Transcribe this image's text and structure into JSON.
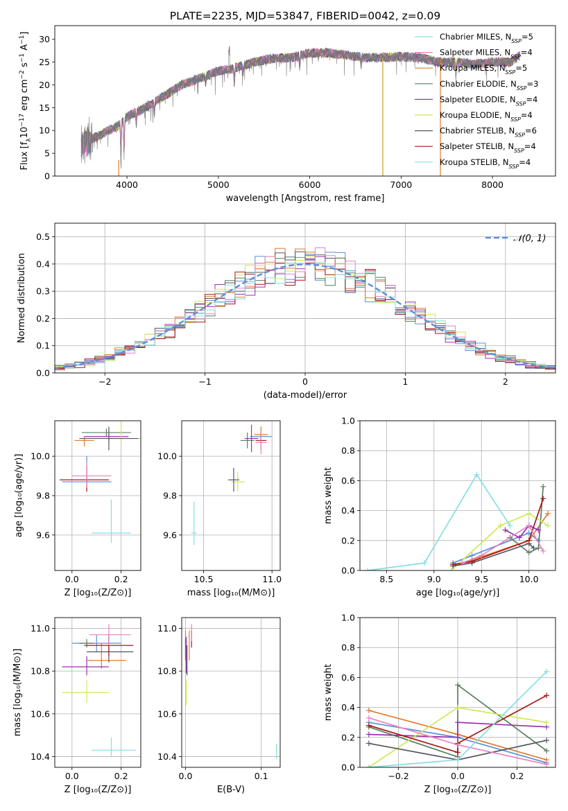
{
  "title": "PLATE=2235, MJD=53847, FIBERID=0042, z=0.09",
  "colors": [
    "#5b8fd8",
    "#e27a2c",
    "#577f5c",
    "#9a2fb1",
    "#cfe857",
    "#55555d",
    "#a81717",
    "#e682c1",
    "#86dde2"
  ],
  "legend_labels": [
    "Chabrier MILES, N_SSP=5",
    "Salpeter MILES, N_SSP=4",
    "Kroupa MILES, N_SSP=5",
    "Chabrier ELODIE, N_SSP=3",
    "Salpeter ELODIE, N_SSP=4",
    "Kroupa ELODIE, N_SSP=4",
    "Chabrier STELIB, N_SSP=6",
    "Salpeter STELIB, N_SSP=4",
    "Kroupa STELIB, N_SSP=4"
  ],
  "legend_colors": [
    "#86dde2",
    "#e682c1",
    "#e27a2c",
    "#577f5c",
    "#9a2fb1",
    "#cfe857",
    "#55555d",
    "#a81717",
    "#86dde2"
  ],
  "chart_data": [
    {
      "type": "line",
      "name": "spectrum",
      "title": "PLATE=2235, MJD=53847, FIBERID=0042, z=0.09",
      "xlabel": "wavelength [Angstrom, rest frame]",
      "ylabel": "Flux [f_λ 10^-17 erg cm^-2 s^-1 A^-1]",
      "xlim": [
        3210,
        8690
      ],
      "ylim": [
        0,
        33
      ],
      "xticks": [
        4000,
        5000,
        6000,
        7000,
        8000
      ],
      "yticks": [
        0,
        5,
        10,
        15,
        20,
        25,
        30
      ],
      "grid": false,
      "legend": "top-right",
      "continuum": {
        "x": [
          3500,
          3700,
          3900,
          4000,
          4200,
          4400,
          4600,
          4800,
          5000,
          5200,
          5400,
          5600,
          5800,
          6000,
          6200,
          6400,
          6600,
          6800,
          7000,
          7200,
          7400,
          7600,
          7800,
          8000,
          8200,
          8300
        ],
        "y": [
          7,
          9,
          11,
          13,
          15,
          17.5,
          20,
          21.5,
          23,
          23.8,
          25,
          25.8,
          26,
          27,
          27,
          26.5,
          26,
          26,
          26.2,
          26,
          25,
          25,
          24.5,
          25,
          25,
          26.5
        ]
      },
      "absorption_features": [
        {
          "x": 3934,
          "depth": 9
        },
        {
          "x": 3968,
          "depth": 8
        },
        {
          "x": 4102,
          "depth": 3
        },
        {
          "x": 4300,
          "depth": 3
        },
        {
          "x": 4861,
          "depth": 2
        },
        {
          "x": 5175,
          "depth": 4
        },
        {
          "x": 5270,
          "depth": 2
        },
        {
          "x": 5890,
          "depth": 3
        },
        {
          "x": 6563,
          "depth": 2
        },
        {
          "x": 7600,
          "depth": 3
        }
      ],
      "vertical_spikes": [
        {
          "x": 3910,
          "y": 3.5,
          "color": "#e27a2c"
        },
        {
          "x": 6800,
          "y": 26,
          "color": "#c8a020"
        },
        {
          "x": 7430,
          "y": 26,
          "color": "#e27a2c"
        }
      ]
    },
    {
      "type": "line",
      "name": "residual-histogram",
      "xlabel": "(data-model)/error",
      "ylabel": "Normed distribution",
      "xlim": [
        -2.5,
        2.5
      ],
      "ylim": [
        0,
        0.55
      ],
      "xticks": [
        -2,
        -1,
        0,
        1,
        2
      ],
      "yticks": [
        0.0,
        0.1,
        0.2,
        0.3,
        0.4,
        0.5
      ],
      "grid": true,
      "legend": "top-right",
      "reference_curve_label": "𝒩(0, 1)",
      "histogram": {
        "bin_start": -2.5,
        "bin_width": 0.1,
        "bins": 50,
        "n_series": 9
      }
    },
    {
      "type": "scatter",
      "name": "age-vs-Z",
      "xlabel": "Z [log10(Z/Z⊙)]",
      "ylabel": "age [log10(age/yr)]",
      "xlim": [
        -0.07,
        0.28
      ],
      "ylim": [
        9.42,
        10.18
      ],
      "xticks": [
        0.0,
        0.2
      ],
      "yticks": [
        9.6,
        9.8,
        10.0
      ],
      "grid": true,
      "points": [
        {
          "x": 0.06,
          "y": 9.87,
          "xerr": [
            0.1,
            0.1
          ],
          "yerr": [
            0.05,
            0.13
          ]
        },
        {
          "x": 0.05,
          "y": 10.08,
          "xerr": [
            0.04,
            0.04
          ],
          "yerr": [
            0.03,
            0.02
          ]
        },
        {
          "x": 0.14,
          "y": 10.12,
          "xerr": [
            0.1,
            0.1
          ],
          "yerr": [
            0.02,
            0.02
          ]
        },
        {
          "x": 0.15,
          "y": 10.1,
          "xerr": [
            0.1,
            0.08
          ],
          "yerr": [
            0.03,
            0.03
          ]
        },
        {
          "x": 0.2,
          "y": 10.09,
          "xerr": [
            0.08,
            0.08
          ],
          "yerr": [
            0.02,
            0.13
          ]
        },
        {
          "x": 0.15,
          "y": 10.09,
          "xerr": [
            0.12,
            0.12
          ],
          "yerr": [
            0.06,
            0.06
          ]
        },
        {
          "x": 0.06,
          "y": 9.88,
          "xerr": [
            0.11,
            0.09
          ],
          "yerr": [
            0.06,
            0.07
          ]
        },
        {
          "x": 0.06,
          "y": 9.9,
          "xerr": [
            0.06,
            0.1
          ],
          "yerr": [
            0.06,
            0.07
          ]
        },
        {
          "x": 0.16,
          "y": 9.61,
          "xerr": [
            0.08,
            0.08
          ],
          "yerr": [
            0.05,
            0.17
          ]
        }
      ]
    },
    {
      "type": "scatter",
      "name": "age-vs-mass",
      "xlabel": "mass [log10(M/M⊙)]",
      "ylabel": "",
      "xlim": [
        10.34,
        11.06
      ],
      "ylim": [
        9.42,
        10.18
      ],
      "xticks": [
        10.5,
        11.0
      ],
      "yticks": [
        9.6,
        9.8,
        10.0
      ],
      "grid": true,
      "points": [
        {
          "x": 10.92,
          "y": 10.1,
          "xerr": [
            0.08,
            0.08
          ],
          "yerr": [
            0.03,
            0.03
          ]
        },
        {
          "x": 10.92,
          "y": 10.11,
          "xerr": [
            0.05,
            0.05
          ],
          "yerr": [
            0.04,
            0.04
          ]
        },
        {
          "x": 10.82,
          "y": 10.08,
          "xerr": [
            0.05,
            0.05
          ],
          "yerr": [
            0.04,
            0.04
          ]
        },
        {
          "x": 10.85,
          "y": 10.09,
          "xerr": [
            0.05,
            0.05
          ],
          "yerr": [
            0.07,
            0.07
          ]
        },
        {
          "x": 10.75,
          "y": 9.87,
          "xerr": [
            0.05,
            0.05
          ],
          "yerr": [
            0.05,
            0.05
          ]
        },
        {
          "x": 10.72,
          "y": 9.88,
          "xerr": [
            0.04,
            0.04
          ],
          "yerr": [
            0.06,
            0.06
          ]
        },
        {
          "x": 10.92,
          "y": 10.08,
          "xerr": [
            0.04,
            0.04
          ],
          "yerr": [
            0.05,
            0.05
          ]
        },
        {
          "x": 10.92,
          "y": 10.07,
          "xerr": [
            0.04,
            0.04
          ],
          "yerr": [
            0.06,
            0.06
          ]
        },
        {
          "x": 10.43,
          "y": 9.61,
          "xerr": [
            0.02,
            0.02
          ],
          "yerr": [
            0.06,
            0.16
          ]
        }
      ]
    },
    {
      "type": "line",
      "name": "mass-weight-vs-age",
      "xlabel": "age [log10(age/yr)]",
      "ylabel": "mass weight",
      "xlim": [
        8.22,
        10.28
      ],
      "ylim": [
        0,
        1.0
      ],
      "xticks": [
        8.5,
        9.0,
        9.5,
        10.0
      ],
      "yticks": [
        0.0,
        0.2,
        0.4,
        0.6,
        0.8,
        1.0
      ],
      "grid": true,
      "series": [
        {
          "x": [
            9.2,
            9.4,
            10.0,
            10.1
          ],
          "y": [
            0.05,
            0.1,
            0.25,
            0.2
          ]
        },
        {
          "x": [
            9.2,
            9.4,
            10.0,
            10.2
          ],
          "y": [
            0.03,
            0.07,
            0.2,
            0.38
          ]
        },
        {
          "x": [
            9.8,
            10.0,
            10.1,
            10.15
          ],
          "y": [
            0.22,
            0.12,
            0.15,
            0.56
          ]
        },
        {
          "x": [
            9.75,
            9.9,
            10.0,
            10.1
          ],
          "y": [
            0.27,
            0.22,
            0.3,
            0.27
          ]
        },
        {
          "x": [
            9.18,
            9.7,
            10.0,
            10.2
          ],
          "y": [
            0.0,
            0.3,
            0.38,
            0.3
          ]
        },
        {
          "x": [
            9.2,
            9.4,
            10.0,
            10.05
          ],
          "y": [
            0.03,
            0.05,
            0.18,
            0.15
          ]
        },
        {
          "x": [
            9.2,
            9.4,
            10.0,
            10.15
          ],
          "y": [
            0.04,
            0.06,
            0.2,
            0.48
          ]
        },
        {
          "x": [
            9.3,
            9.5,
            10.0,
            10.15
          ],
          "y": [
            0.05,
            0.1,
            0.3,
            0.13
          ]
        },
        {
          "x": [
            8.3,
            8.9,
            9.45,
            9.8
          ],
          "y": [
            0.0,
            0.05,
            0.64,
            0.3
          ]
        }
      ]
    },
    {
      "type": "scatter",
      "name": "mass-vs-Z",
      "xlabel": "Z [log10(Z/Z⊙)]",
      "ylabel": "mass [log10(M/M⊙)]",
      "xlim": [
        -0.07,
        0.28
      ],
      "ylim": [
        10.35,
        11.05
      ],
      "xticks": [
        0.0,
        0.2
      ],
      "yticks": [
        10.4,
        10.6,
        10.8,
        11.0
      ],
      "grid": true,
      "points": [
        {
          "x": 0.1,
          "y": 10.93,
          "xerr": [
            0.1,
            0.1
          ],
          "yerr": [
            0.04,
            0.04
          ]
        },
        {
          "x": 0.12,
          "y": 10.85,
          "xerr": [
            0.06,
            0.1
          ],
          "yerr": [
            0.04,
            0.08
          ]
        },
        {
          "x": 0.06,
          "y": 10.93,
          "xerr": [
            0.03,
            0.03
          ],
          "yerr": [
            0.02,
            0.02
          ]
        },
        {
          "x": 0.06,
          "y": 10.82,
          "xerr": [
            0.1,
            0.09
          ],
          "yerr": [
            0.04,
            0.05
          ]
        },
        {
          "x": 0.06,
          "y": 10.7,
          "xerr": [
            0.1,
            0.09
          ],
          "yerr": [
            0.05,
            0.06
          ]
        },
        {
          "x": 0.15,
          "y": 10.89,
          "xerr": [
            0.09,
            0.1
          ],
          "yerr": [
            0.05,
            0.07
          ]
        },
        {
          "x": 0.15,
          "y": 10.92,
          "xerr": [
            0.1,
            0.1
          ],
          "yerr": [
            0.05,
            0.05
          ]
        },
        {
          "x": 0.15,
          "y": 10.97,
          "xerr": [
            0.08,
            0.09
          ],
          "yerr": [
            0.05,
            0.05
          ]
        },
        {
          "x": 0.16,
          "y": 10.43,
          "xerr": [
            0.08,
            0.1
          ],
          "yerr": [
            0.03,
            0.06
          ]
        }
      ]
    },
    {
      "type": "scatter",
      "name": "mass-vs-EBV",
      "xlabel": "E(B-V)",
      "ylabel": "",
      "xlim": [
        -0.005,
        0.125
      ],
      "ylim": [
        10.35,
        11.05
      ],
      "xticks": [
        0.0,
        0.1
      ],
      "yticks": [
        10.4,
        10.6,
        10.8,
        11.0
      ],
      "grid": true,
      "points": [
        {
          "x": 0.0,
          "y": 10.93,
          "xerr": [
            0.0,
            0.0
          ],
          "yerr": [
            0.06,
            0.06
          ]
        },
        {
          "x": 0.005,
          "y": 10.92,
          "xerr": [
            0.0,
            0.0
          ],
          "yerr": [
            0.07,
            0.07
          ]
        },
        {
          "x": 0.0,
          "y": 10.9,
          "xerr": [
            0.0,
            0.0
          ],
          "yerr": [
            0.05,
            0.05
          ]
        },
        {
          "x": 0.001,
          "y": 10.88,
          "xerr": [
            0.0,
            0.0
          ],
          "yerr": [
            0.09,
            0.08
          ]
        },
        {
          "x": 0.001,
          "y": 10.7,
          "xerr": [
            0.0,
            0.0
          ],
          "yerr": [
            0.06,
            0.06
          ]
        },
        {
          "x": 0.002,
          "y": 10.85,
          "xerr": [
            0.0,
            0.0
          ],
          "yerr": [
            0.07,
            0.07
          ]
        },
        {
          "x": 0.008,
          "y": 10.95,
          "xerr": [
            0.0,
            0.0
          ],
          "yerr": [
            0.04,
            0.04
          ]
        },
        {
          "x": 0.008,
          "y": 10.98,
          "xerr": [
            0.0,
            0.0
          ],
          "yerr": [
            0.04,
            0.04
          ]
        },
        {
          "x": 0.12,
          "y": 10.42,
          "xerr": [
            0.0,
            0.0
          ],
          "yerr": [
            0.03,
            0.04
          ]
        }
      ]
    },
    {
      "type": "line",
      "name": "mass-weight-vs-Z",
      "xlabel": "Z [log10(Z/Z⊙)]",
      "ylabel": "mass weight",
      "xlim": [
        -0.33,
        0.33
      ],
      "ylim": [
        0,
        1.0
      ],
      "xticks": [
        -0.2,
        0.0,
        0.2
      ],
      "yticks": [
        0.0,
        0.2,
        0.4,
        0.6,
        0.8,
        1.0
      ],
      "grid": true,
      "series": [
        {
          "x": [
            -0.3,
            0.0,
            0.3
          ],
          "y": [
            0.3,
            0.2,
            0.03
          ]
        },
        {
          "x": [
            -0.3,
            0.0,
            0.3
          ],
          "y": [
            0.38,
            0.22,
            0.05
          ]
        },
        {
          "x": [
            -0.3,
            0.0,
            0.0,
            0.3
          ],
          "y": [
            0.27,
            0.07,
            0.55,
            0.11
          ]
        },
        {
          "x": [
            -0.3,
            0.0,
            0.0,
            0.3
          ],
          "y": [
            0.22,
            0.2,
            0.3,
            0.27
          ]
        },
        {
          "x": [
            -0.3,
            0.0,
            0.3
          ],
          "y": [
            0.0,
            0.4,
            0.3
          ]
        },
        {
          "x": [
            -0.3,
            0.0,
            0.3
          ],
          "y": [
            0.16,
            0.05,
            0.18
          ]
        },
        {
          "x": [
            -0.3,
            0.0,
            0.0,
            0.3
          ],
          "y": [
            0.28,
            0.1,
            0.16,
            0.48
          ]
        },
        {
          "x": [
            -0.3,
            0.0,
            0.3
          ],
          "y": [
            0.33,
            0.15,
            0.02
          ]
        },
        {
          "x": [
            -0.3,
            0.0,
            0.3
          ],
          "y": [
            0.0,
            0.05,
            0.64
          ]
        }
      ]
    }
  ]
}
